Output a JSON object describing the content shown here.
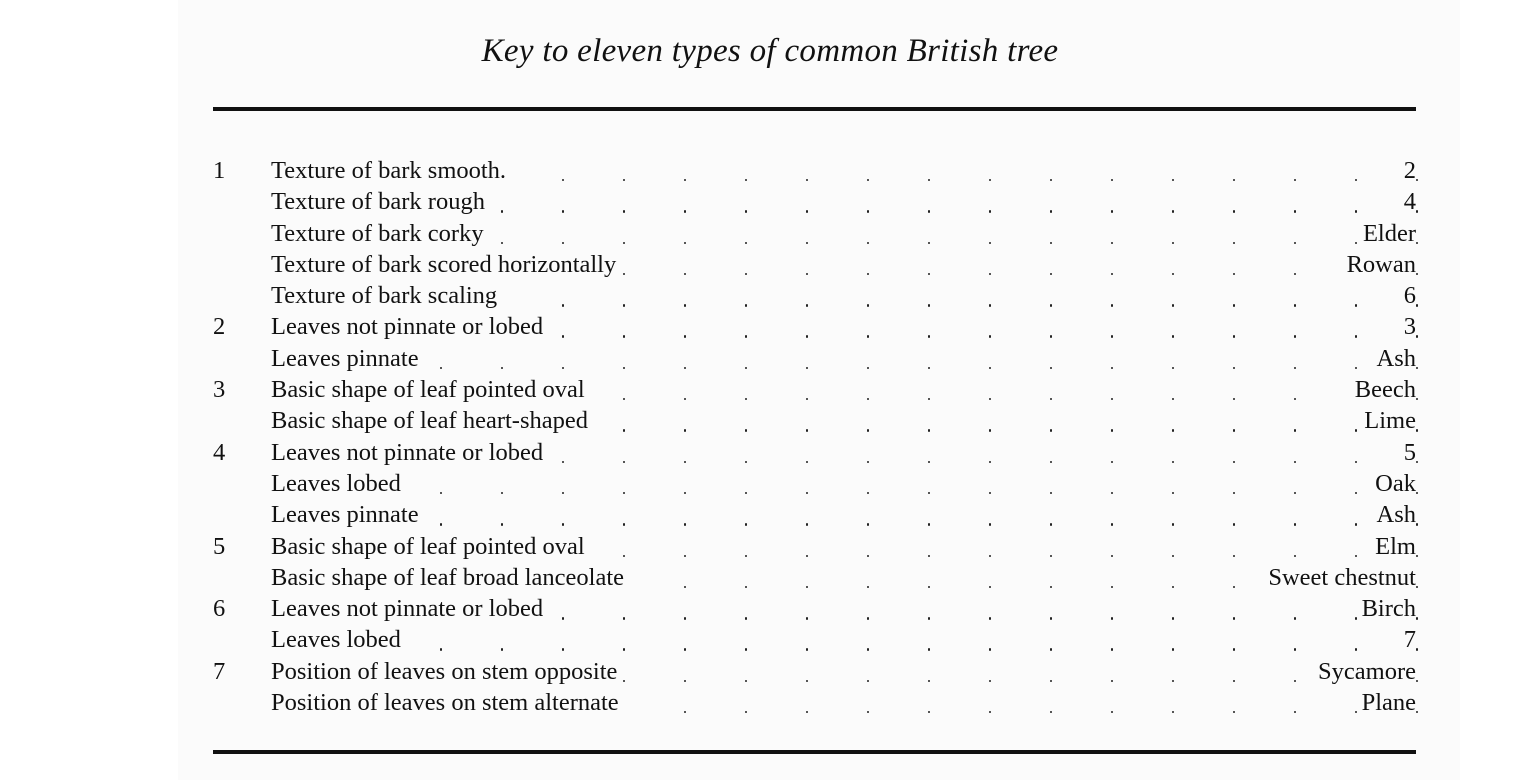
{
  "title": "Key to eleven types of common British tree",
  "rows": [
    {
      "num": "1",
      "text": "Texture of bark smooth.",
      "result": "2"
    },
    {
      "num": "",
      "text": "Texture of bark rough",
      "result": "4"
    },
    {
      "num": "",
      "text": "Texture of bark corky",
      "result": "Elder"
    },
    {
      "num": "",
      "text": "Texture of bark scored horizontally",
      "result": "Rowan"
    },
    {
      "num": "",
      "text": "Texture of bark scaling",
      "result": "6"
    },
    {
      "num": "2",
      "text": "Leaves not pinnate or lobed",
      "result": "3"
    },
    {
      "num": "",
      "text": "Leaves pinnate",
      "result": "Ash"
    },
    {
      "num": "3",
      "text": "Basic shape of leaf pointed oval",
      "result": "Beech"
    },
    {
      "num": "",
      "text": "Basic shape of leaf heart-shaped",
      "result": "Lime"
    },
    {
      "num": "4",
      "text": "Leaves not pinnate or lobed",
      "result": "5"
    },
    {
      "num": "",
      "text": "Leaves lobed",
      "result": "Oak"
    },
    {
      "num": "",
      "text": "Leaves pinnate",
      "result": "Ash"
    },
    {
      "num": "5",
      "text": "Basic shape of leaf pointed oval",
      "result": "Elm"
    },
    {
      "num": "",
      "text": "Basic shape of leaf broad lanceolate",
      "result": "Sweet chestnut"
    },
    {
      "num": "6",
      "text": "Leaves not pinnate or lobed",
      "result": "Birch"
    },
    {
      "num": "",
      "text": "Leaves lobed",
      "result": "7"
    },
    {
      "num": "7",
      "text": "Position of leaves on stem opposite",
      "result": "Sycamore"
    },
    {
      "num": "",
      "text": "Position of leaves on stem alternate",
      "result": "Plane"
    }
  ]
}
